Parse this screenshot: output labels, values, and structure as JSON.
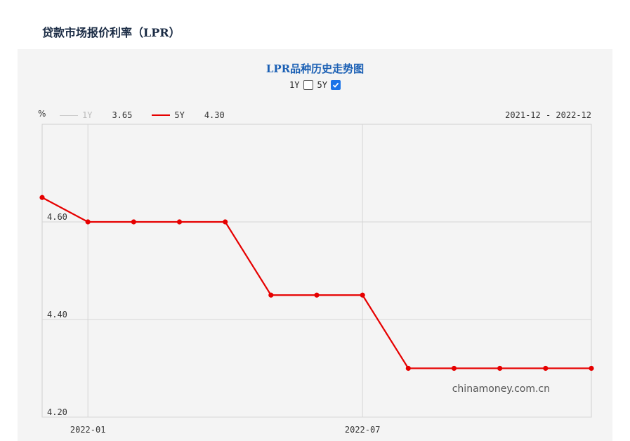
{
  "page": {
    "title": "贷款市场报价利率（LPR）"
  },
  "watermark": "chinamoney.com.cn",
  "toggles": [
    {
      "label": "1Y",
      "checked": false
    },
    {
      "label": "5Y",
      "checked": true
    }
  ],
  "legend": [
    {
      "name": "1Y",
      "value": "3.65",
      "active": false
    },
    {
      "name": "5Y",
      "value": "4.30",
      "active": true
    }
  ],
  "colors": {
    "series": "#e60000",
    "title": "#1a5fb4"
  },
  "chart_data": {
    "type": "line",
    "title": "LPR品种历史走势图",
    "ylabel": "%",
    "date_range": "2021-12 - 2022-12",
    "x": [
      "2021-12",
      "2022-01",
      "2022-02",
      "2022-03",
      "2022-04",
      "2022-05",
      "2022-06",
      "2022-07",
      "2022-08",
      "2022-09",
      "2022-10",
      "2022-11",
      "2022-12"
    ],
    "x_ticks": [
      "2022-01",
      "2022-07"
    ],
    "y_ticks": [
      "4.20",
      "4.40",
      "4.60"
    ],
    "ylim": [
      4.2,
      4.8
    ],
    "grid": true,
    "series": [
      {
        "name": "5Y",
        "values": [
          4.65,
          4.6,
          4.6,
          4.6,
          4.6,
          4.45,
          4.45,
          4.45,
          4.3,
          4.3,
          4.3,
          4.3,
          4.3
        ]
      }
    ]
  }
}
